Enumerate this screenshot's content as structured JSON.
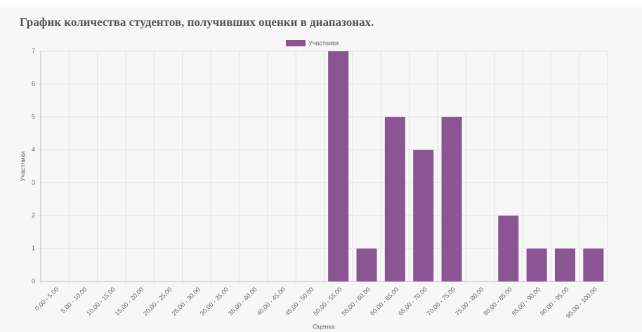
{
  "chart_data": {
    "type": "bar",
    "title": "График количества студентов, получивших оценки в диапазонах.",
    "x_label": "Оценка",
    "y_label": "Участники",
    "categories": [
      "0,00 - 5,00",
      "5,00 - 10,00",
      "10,00 - 15,00",
      "15,00 - 20,00",
      "20,00 - 25,00",
      "25,00 - 30,00",
      "30,00 - 35,00",
      "35,00 - 40,00",
      "40,00 - 45,00",
      "45,00 - 50,00",
      "50,00 - 55,00",
      "55,00 - 60,00",
      "60,00 - 65,00",
      "65,00 - 70,00",
      "70,00 - 75,00",
      "75,00 - 80,00",
      "80,00 - 85,00",
      "85,00 - 90,00",
      "90,00 - 95,00",
      "95,00 - 100,00"
    ],
    "series": [
      {
        "name": "Участники",
        "color": "#8b5594",
        "values": [
          0,
          0,
          0,
          0,
          0,
          0,
          0,
          0,
          0,
          0,
          7,
          1,
          5,
          4,
          5,
          0,
          2,
          1,
          1,
          1
        ]
      }
    ],
    "ylim": [
      0,
      7
    ],
    "yticks": [
      0,
      1,
      2,
      3,
      4,
      5,
      6,
      7
    ],
    "grid": true,
    "legend": "top"
  }
}
